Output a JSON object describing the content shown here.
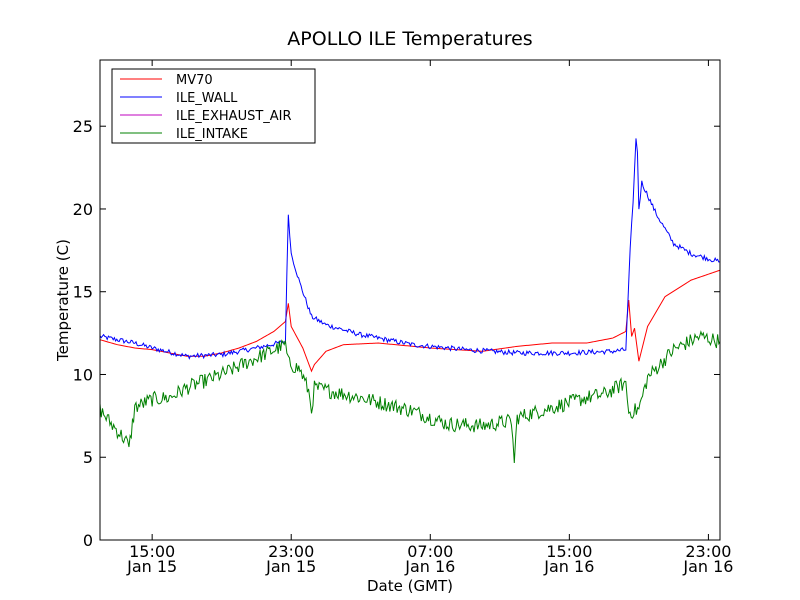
{
  "chart_data": {
    "type": "line",
    "title": "APOLLO ILE Temperatures",
    "xlabel": "Date (GMT)",
    "ylabel": "Temperature (C)",
    "x_unit": "datetime GMT",
    "xlim": [
      "2015-01-15 12:00",
      "2015-01-16 23:40"
    ],
    "ylim": [
      0,
      29
    ],
    "yticks": [
      0,
      5,
      10,
      15,
      20,
      25
    ],
    "xticks": [
      {
        "x": "2015-01-15 15:00",
        "time": "15:00",
        "date": "Jan 15"
      },
      {
        "x": "2015-01-15 23:00",
        "time": "23:00",
        "date": "Jan 15"
      },
      {
        "x": "2015-01-16 07:00",
        "time": "07:00",
        "date": "Jan 16"
      },
      {
        "x": "2015-01-16 15:00",
        "time": "15:00",
        "date": "Jan 16"
      },
      {
        "x": "2015-01-16 23:00",
        "time": "23:00",
        "date": "Jan 16"
      }
    ],
    "grid": false,
    "legend_position": "top-left",
    "series": [
      {
        "name": "MV70",
        "color": "#ff0000",
        "noise": 0.0,
        "points": [
          [
            "2015-01-15 12:00",
            12.1
          ],
          [
            "2015-01-15 13:00",
            11.8
          ],
          [
            "2015-01-15 14:00",
            11.6
          ],
          [
            "2015-01-15 15:00",
            11.5
          ],
          [
            "2015-01-15 16:00",
            11.3
          ],
          [
            "2015-01-15 17:00",
            11.1
          ],
          [
            "2015-01-15 18:00",
            11.1
          ],
          [
            "2015-01-15 19:00",
            11.3
          ],
          [
            "2015-01-15 20:00",
            11.6
          ],
          [
            "2015-01-15 21:00",
            12.0
          ],
          [
            "2015-01-15 22:00",
            12.6
          ],
          [
            "2015-01-15 22:40",
            13.2
          ],
          [
            "2015-01-15 22:50",
            14.3
          ],
          [
            "2015-01-15 23:00",
            12.9
          ],
          [
            "2015-01-15 23:40",
            11.6
          ],
          [
            "2015-01-16 00:10",
            10.2
          ],
          [
            "2015-01-16 00:20",
            10.6
          ],
          [
            "2015-01-16 01:00",
            11.4
          ],
          [
            "2015-01-16 02:00",
            11.8
          ],
          [
            "2015-01-16 04:00",
            11.9
          ],
          [
            "2015-01-16 07:00",
            11.6
          ],
          [
            "2015-01-16 10:00",
            11.4
          ],
          [
            "2015-01-16 12:00",
            11.7
          ],
          [
            "2015-01-16 14:00",
            11.9
          ],
          [
            "2015-01-16 16:00",
            11.9
          ],
          [
            "2015-01-16 17:30",
            12.2
          ],
          [
            "2015-01-16 18:15",
            12.6
          ],
          [
            "2015-01-16 18:25",
            14.5
          ],
          [
            "2015-01-16 18:35",
            12.3
          ],
          [
            "2015-01-16 18:45",
            12.8
          ],
          [
            "2015-01-16 19:00",
            10.8
          ],
          [
            "2015-01-16 19:30",
            12.9
          ],
          [
            "2015-01-16 20:30",
            14.7
          ],
          [
            "2015-01-16 22:00",
            15.7
          ],
          [
            "2015-01-16 23:40",
            16.3
          ]
        ]
      },
      {
        "name": "ILE_WALL",
        "color": "#0000ff",
        "noise": 0.15,
        "points": [
          [
            "2015-01-15 12:00",
            12.3
          ],
          [
            "2015-01-15 14:00",
            11.9
          ],
          [
            "2015-01-15 15:00",
            11.6
          ],
          [
            "2015-01-15 17:00",
            11.1
          ],
          [
            "2015-01-15 19:00",
            11.2
          ],
          [
            "2015-01-15 21:00",
            11.6
          ],
          [
            "2015-01-15 22:40",
            12.0
          ],
          [
            "2015-01-15 22:45",
            16.0
          ],
          [
            "2015-01-15 22:50",
            19.7
          ],
          [
            "2015-01-15 23:00",
            17.3
          ],
          [
            "2015-01-15 23:30",
            15.5
          ],
          [
            "2015-01-16 00:10",
            13.5
          ],
          [
            "2015-01-16 01:00",
            13.0
          ],
          [
            "2015-01-16 03:00",
            12.4
          ],
          [
            "2015-01-16 06:00",
            11.8
          ],
          [
            "2015-01-16 09:00",
            11.5
          ],
          [
            "2015-01-16 12:00",
            11.3
          ],
          [
            "2015-01-16 15:00",
            11.3
          ],
          [
            "2015-01-16 17:30",
            11.4
          ],
          [
            "2015-01-16 18:15",
            11.5
          ],
          [
            "2015-01-16 18:30",
            17.5
          ],
          [
            "2015-01-16 18:40",
            20.5
          ],
          [
            "2015-01-16 18:50",
            24.2
          ],
          [
            "2015-01-16 18:55",
            23.5
          ],
          [
            "2015-01-16 19:00",
            20.0
          ],
          [
            "2015-01-16 19:10",
            21.6
          ],
          [
            "2015-01-16 20:00",
            19.7
          ],
          [
            "2015-01-16 21:00",
            17.9
          ],
          [
            "2015-01-16 22:00",
            17.3
          ],
          [
            "2015-01-16 23:40",
            16.8
          ]
        ]
      },
      {
        "name": "ILE_EXHAUST_AIR",
        "color": "#bf00bf",
        "noise": 0.0,
        "points": []
      },
      {
        "name": "ILE_INTAKE",
        "color": "#008000",
        "noise": 0.45,
        "points": [
          [
            "2015-01-15 12:00",
            7.9
          ],
          [
            "2015-01-15 12:30",
            7.2
          ],
          [
            "2015-01-15 13:00",
            6.6
          ],
          [
            "2015-01-15 13:30",
            6.0
          ],
          [
            "2015-01-15 13:40",
            5.5
          ],
          [
            "2015-01-15 14:00",
            8.0
          ],
          [
            "2015-01-15 15:00",
            8.5
          ],
          [
            "2015-01-15 16:00",
            8.6
          ],
          [
            "2015-01-15 17:00",
            9.2
          ],
          [
            "2015-01-15 19:00",
            10.0
          ],
          [
            "2015-01-15 21:00",
            11.0
          ],
          [
            "2015-01-15 22:40",
            11.8
          ],
          [
            "2015-01-15 22:50",
            10.7
          ],
          [
            "2015-01-15 23:30",
            10.3
          ],
          [
            "2015-01-16 00:00",
            9.0
          ],
          [
            "2015-01-16 00:10",
            7.9
          ],
          [
            "2015-01-16 00:20",
            9.2
          ],
          [
            "2015-01-16 03:00",
            8.6
          ],
          [
            "2015-01-16 06:00",
            7.8
          ],
          [
            "2015-01-16 08:00",
            7.0
          ],
          [
            "2015-01-16 10:00",
            6.9
          ],
          [
            "2015-01-16 11:40",
            7.2
          ],
          [
            "2015-01-16 11:50",
            4.7
          ],
          [
            "2015-01-16 12:00",
            7.4
          ],
          [
            "2015-01-16 14:00",
            8.0
          ],
          [
            "2015-01-16 16:00",
            8.6
          ],
          [
            "2015-01-16 17:00",
            8.8
          ],
          [
            "2015-01-16 18:15",
            9.5
          ],
          [
            "2015-01-16 18:25",
            7.7
          ],
          [
            "2015-01-16 19:00",
            7.9
          ],
          [
            "2015-01-16 19:30",
            9.8
          ],
          [
            "2015-01-16 21:00",
            11.5
          ],
          [
            "2015-01-16 22:30",
            12.3
          ],
          [
            "2015-01-16 23:40",
            12.0
          ]
        ]
      }
    ]
  }
}
